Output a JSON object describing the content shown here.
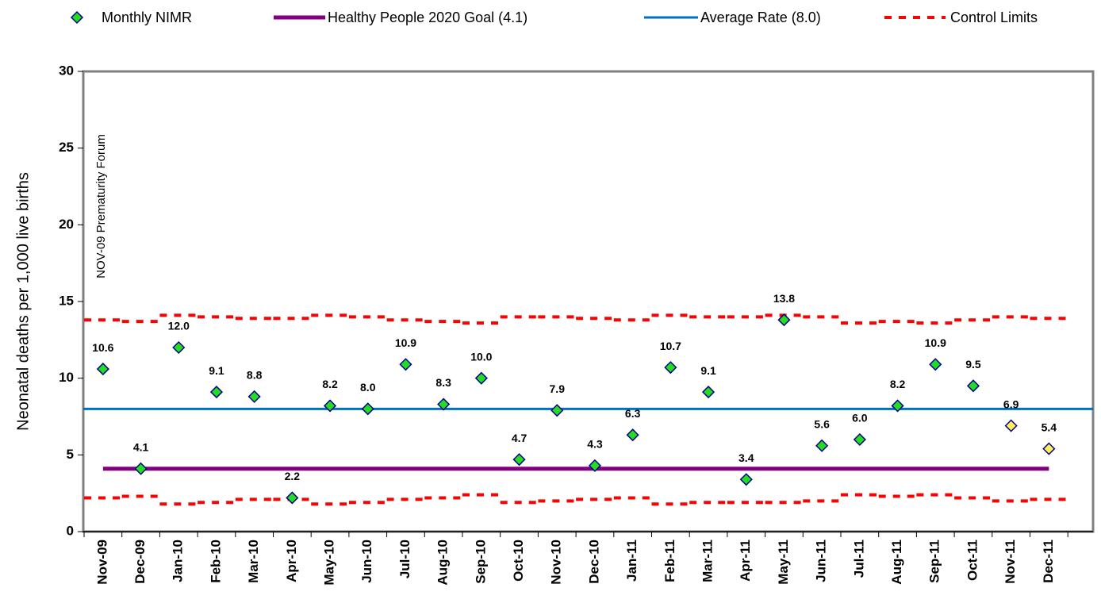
{
  "chart_data": {
    "type": "scatter",
    "annotation": "NOV-09 Prematurity Forum",
    "y_label": "Neonatal deaths per 1,000 live births",
    "categories": [
      "Nov-09",
      "Dec-09",
      "Jan-10",
      "Feb-10",
      "Mar-10",
      "Apr-10",
      "May-10",
      "Jun-10",
      "Jul-10",
      "Aug-10",
      "Sep-10",
      "Oct-10",
      "Nov-10",
      "Dec-10",
      "Jan-11",
      "Feb-11",
      "Mar-11",
      "Apr-11",
      "May-11",
      "Jun-11",
      "Jul-11",
      "Aug-11",
      "Sep-11",
      "Oct-11",
      "Nov-11",
      "Dec-11"
    ],
    "series": [
      {
        "name": "Monthly NIMR",
        "color": "#22dd22",
        "values": [
          10.6,
          4.1,
          12.0,
          9.1,
          8.8,
          2.2,
          8.2,
          8.0,
          10.9,
          8.3,
          10.0,
          4.7,
          7.9,
          4.3,
          6.3,
          10.7,
          9.1,
          3.4,
          13.8,
          5.6,
          6.0,
          8.2,
          10.9,
          9.5,
          6.9,
          5.4
        ],
        "value_labels": [
          "10.6",
          "4.1",
          "12.0",
          "9.1",
          "8.8",
          "2.2",
          "8.2",
          "8.0",
          "10.9",
          "8.3",
          "10.0",
          "4.7",
          "7.9",
          "4.3",
          "6.3",
          "10.7",
          "9.1",
          "3.4",
          "13.8",
          "5.6",
          "6.0",
          "8.2",
          "10.9",
          "9.5",
          "6.9",
          "5.4"
        ],
        "point_colors": [
          "#22dd22",
          "#22dd22",
          "#22dd22",
          "#22dd22",
          "#22dd22",
          "#22dd22",
          "#22dd22",
          "#22dd22",
          "#22dd22",
          "#22dd22",
          "#22dd22",
          "#22dd22",
          "#22dd22",
          "#22dd22",
          "#22dd22",
          "#22dd22",
          "#22dd22",
          "#22dd22",
          "#22dd22",
          "#22dd22",
          "#22dd22",
          "#22dd22",
          "#22dd22",
          "#22dd22",
          "#ffee55",
          "#ffee55"
        ]
      }
    ],
    "goal": {
      "name": "Healthy People 2020 Goal (4.1)",
      "color": "#800080",
      "value": 4.1
    },
    "average": {
      "name": "Average Rate (8.0)",
      "color": "#0070c0",
      "value": 8.0
    },
    "control_limits": {
      "name": "Control Limits",
      "color": "#ff0000",
      "upper": [
        13.8,
        13.7,
        14.1,
        14.0,
        13.9,
        13.9,
        14.1,
        14.0,
        13.8,
        13.7,
        13.6,
        14.0,
        14.0,
        13.9,
        13.8,
        14.1,
        14.0,
        14.0,
        14.1,
        14.0,
        13.6,
        13.7,
        13.6,
        13.8,
        14.0,
        13.9
      ],
      "lower": [
        2.2,
        2.3,
        1.8,
        1.9,
        2.1,
        2.1,
        1.8,
        1.9,
        2.1,
        2.2,
        2.4,
        1.9,
        2.0,
        2.1,
        2.2,
        1.8,
        1.9,
        1.9,
        1.9,
        2.0,
        2.4,
        2.3,
        2.4,
        2.2,
        2.0,
        2.1
      ]
    },
    "ylim": [
      0,
      30
    ],
    "yticks": [
      0,
      5,
      10,
      15,
      20,
      25,
      30
    ],
    "grid": false
  }
}
